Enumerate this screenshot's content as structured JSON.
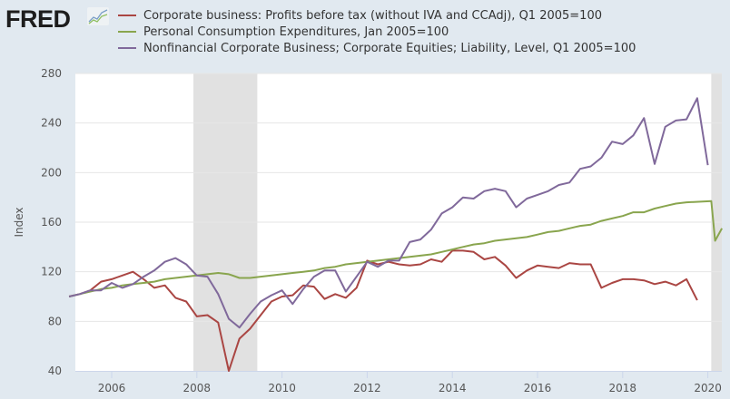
{
  "header": {
    "logo_text": "FRED",
    "logo_icon": "line-chart-icon"
  },
  "colors": {
    "background": "#e1e9f0",
    "plot_background": "#ffffff",
    "recession": "#e1e1e1",
    "grid": "#e6e6e6",
    "series_red": "#aa4643",
    "series_green": "#89a54e",
    "series_purple": "#80699b"
  },
  "chart_data": {
    "type": "line",
    "title": "",
    "xlabel": "",
    "ylabel": "Index",
    "ylim": [
      40,
      280
    ],
    "xlim": [
      2005.0,
      2020.42
    ],
    "yticks": [
      40,
      80,
      120,
      160,
      200,
      240,
      280
    ],
    "xticks": [
      2006,
      2008,
      2010,
      2012,
      2014,
      2016,
      2018,
      2020
    ],
    "grid": true,
    "legend_position": "top",
    "recessions": [
      [
        2007.92,
        2009.42
      ],
      [
        2020.08,
        2020.42
      ]
    ],
    "series": [
      {
        "name": "Corporate business: Profits before tax (without IVA and CCAdj), Q1 2005=100",
        "color": "#aa4643",
        "x_start": 2005.0,
        "x_step": 0.25,
        "values": [
          100,
          102,
          105,
          112,
          114,
          117,
          120,
          114,
          107,
          109,
          99,
          96,
          84,
          85,
          79,
          40,
          66,
          74,
          85,
          96,
          100,
          101,
          109,
          108,
          98,
          102,
          99,
          107,
          129,
          126,
          128,
          126,
          125,
          126,
          130,
          128,
          137,
          137,
          136,
          130,
          132,
          125,
          115,
          121,
          125,
          124,
          123,
          127,
          126,
          126,
          107,
          111,
          114,
          114,
          113,
          110,
          112,
          109,
          114,
          97
        ]
      },
      {
        "name": "Personal Consumption Expenditures, Jan 2005=100",
        "color": "#89a54e",
        "x_start": 2005.0,
        "x_step": 0.25,
        "values": [
          100,
          102,
          104,
          106,
          107,
          109,
          110,
          111,
          112,
          114,
          115,
          116,
          117,
          118,
          119,
          118,
          115,
          115,
          116,
          117,
          118,
          119,
          120,
          121,
          123,
          124,
          126,
          127,
          128,
          129,
          130,
          131,
          132,
          133,
          134,
          136,
          138,
          140,
          142,
          143,
          145,
          146,
          147,
          148,
          150,
          152,
          153,
          155,
          157,
          158,
          161,
          163,
          165,
          168,
          168,
          171,
          173,
          175,
          176,
          177,
          145,
          155
        ]
      },
      {
        "name": "Nonfinancial Corporate Business; Corporate Equities; Liability, Level, Q1 2005=100",
        "color": "#80699b",
        "x_start": 2005.0,
        "x_step": 0.25,
        "values": [
          100,
          102,
          105,
          105,
          111,
          107,
          110,
          116,
          121,
          128,
          131,
          126,
          117,
          116,
          102,
          82,
          75,
          86,
          96,
          101,
          105,
          94,
          106,
          116,
          121,
          121,
          104,
          116,
          128,
          124,
          129,
          129,
          144,
          146,
          154,
          167,
          172,
          180,
          179,
          185,
          187,
          185,
          172,
          179,
          182,
          185,
          190,
          192,
          203,
          205,
          212,
          225,
          223,
          230,
          244,
          207,
          237,
          242,
          243,
          260,
          206
        ]
      }
    ]
  }
}
